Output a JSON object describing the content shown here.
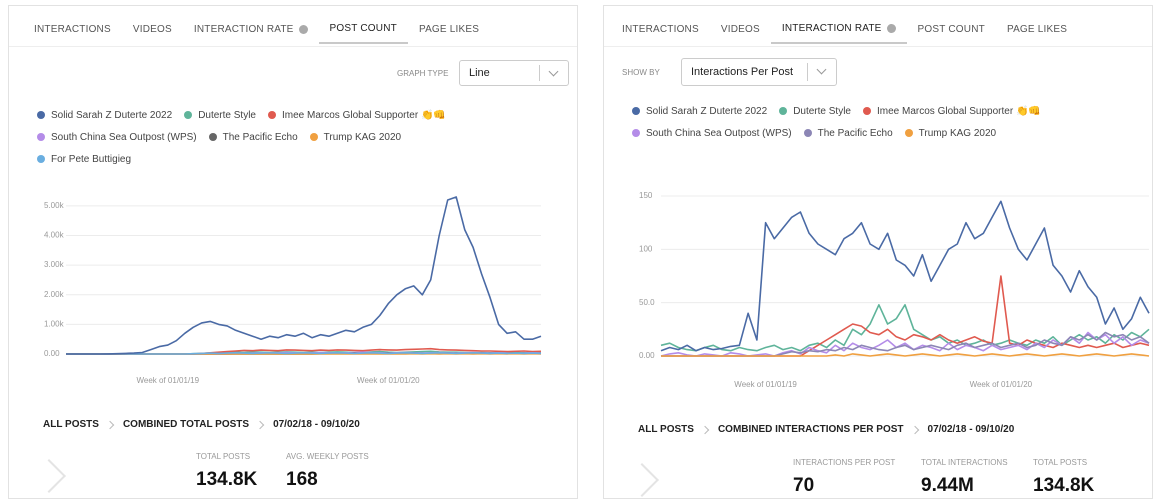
{
  "panels": [
    {
      "tabs": [
        "INTERACTIONS",
        "VIDEOS",
        "INTERACTION RATE",
        "POST COUNT",
        "PAGE LIKES"
      ],
      "control_label": "GRAPH TYPE",
      "control_value": "Line",
      "breadcrumb": [
        "ALL POSTS",
        "COMBINED TOTAL POSTS"
      ],
      "date_range": "07/02/18 - 09/10/20",
      "stats": [
        {
          "label": "TOTAL POSTS",
          "value": "134.8K"
        },
        {
          "label": "AVG. WEEKLY POSTS",
          "value": "168"
        }
      ]
    },
    {
      "tabs": [
        "INTERACTIONS",
        "VIDEOS",
        "INTERACTION RATE",
        "POST COUNT",
        "PAGE LIKES"
      ],
      "control_label": "SHOW BY",
      "control_value": "Interactions Per Post",
      "breadcrumb": [
        "ALL POSTS",
        "COMBINED INTERACTIONS PER POST"
      ],
      "date_range": "07/02/18 - 09/10/20",
      "stats": [
        {
          "label": "INTERACTIONS PER POST",
          "value": "70"
        },
        {
          "label": "TOTAL INTERACTIONS",
          "value": "9.44M"
        },
        {
          "label": "TOTAL POSTS",
          "value": "134.8K"
        }
      ]
    }
  ],
  "chart_data": [
    {
      "type": "line",
      "grid": true,
      "categories": [
        null,
        null,
        null,
        null,
        null,
        null,
        null,
        null,
        null,
        null,
        null,
        null,
        "Week of 01/01/19",
        null,
        null,
        null,
        null,
        null,
        null,
        null,
        null,
        null,
        null,
        null,
        null,
        null,
        null,
        null,
        null,
        null,
        null,
        null,
        null,
        null,
        null,
        null,
        null,
        null,
        "Week of 01/01/20",
        null,
        null,
        null,
        null,
        null,
        null,
        null,
        null,
        null,
        null,
        null,
        null,
        null,
        null,
        null,
        null,
        null,
        null
      ],
      "ylim": [
        0,
        5300
      ],
      "yticks": [
        {
          "value": 0,
          "label": "0.00"
        },
        {
          "value": 1000,
          "label": "1.00k"
        },
        {
          "value": 2000,
          "label": "2.00k"
        },
        {
          "value": 3000,
          "label": "3.00k"
        },
        {
          "value": 4000,
          "label": "4.00k"
        },
        {
          "value": 5000,
          "label": "5.00k"
        }
      ],
      "series": [
        {
          "name": "Solid Sarah Z Duterte 2022",
          "color": "#4a6aa5",
          "values": [
            0,
            0,
            0,
            0,
            0,
            5,
            10,
            20,
            30,
            50,
            150,
            250,
            300,
            450,
            700,
            900,
            1050,
            1100,
            1000,
            950,
            800,
            700,
            600,
            500,
            600,
            550,
            650,
            600,
            700,
            550,
            650,
            600,
            700,
            800,
            750,
            900,
            1000,
            1300,
            1700,
            2000,
            2200,
            2300,
            2000,
            2500,
            4000,
            5200,
            5300,
            4200,
            3600,
            2700,
            1900,
            1000,
            700,
            750,
            500,
            500,
            600
          ]
        },
        {
          "name": "Duterte Style",
          "color": "#5fb49a",
          "values": [
            0,
            0,
            0,
            0,
            0,
            0,
            0,
            0,
            0,
            0,
            0,
            0,
            0,
            0,
            0,
            10,
            20,
            30,
            40,
            50,
            60,
            50,
            70,
            60,
            50,
            60,
            70,
            60,
            50,
            60,
            50,
            60,
            70,
            60,
            50,
            60,
            70,
            80,
            60,
            50,
            60,
            70,
            80,
            90,
            70,
            60,
            60,
            50,
            40,
            50,
            40,
            50,
            60,
            50,
            40,
            50,
            50
          ]
        },
        {
          "name": "Imee Marcos Global Supporter 👏👊",
          "color": "#e05a4f",
          "values": [
            0,
            0,
            0,
            0,
            0,
            0,
            0,
            0,
            0,
            0,
            0,
            0,
            0,
            0,
            0,
            0,
            20,
            40,
            60,
            80,
            100,
            120,
            110,
            130,
            120,
            110,
            140,
            130,
            120,
            110,
            130,
            120,
            140,
            130,
            120,
            110,
            130,
            150,
            140,
            130,
            150,
            160,
            170,
            180,
            150,
            140,
            130,
            120,
            110,
            100,
            100,
            90,
            80,
            90,
            100,
            80,
            90
          ]
        },
        {
          "name": "South China Sea Outpost (WPS)",
          "color": "#b48ce8",
          "values": [
            0,
            0,
            0,
            0,
            0,
            0,
            0,
            0,
            0,
            0,
            0,
            0,
            0,
            0,
            0,
            0,
            0,
            0,
            0,
            0,
            10,
            20,
            30,
            40,
            30,
            40,
            50,
            40,
            30,
            40,
            50,
            40,
            30,
            40,
            50,
            60,
            50,
            40,
            30,
            40,
            50,
            40,
            30,
            40,
            50,
            40,
            30,
            40,
            50,
            40,
            30,
            40,
            30,
            20,
            30,
            40,
            30
          ]
        },
        {
          "name": "The Pacific Echo",
          "color": "#666666",
          "values": [
            0,
            0,
            0,
            0,
            0,
            0,
            0,
            0,
            0,
            0,
            0,
            0,
            0,
            0,
            0,
            0,
            0,
            0,
            0,
            0,
            0,
            0,
            0,
            0,
            0,
            0,
            0,
            0,
            0,
            0,
            10,
            20,
            10,
            20,
            30,
            20,
            10,
            20,
            30,
            20,
            20,
            30,
            20,
            10,
            20,
            30,
            20,
            10,
            20,
            30,
            20,
            10,
            20,
            10,
            20,
            10,
            20
          ]
        },
        {
          "name": "Trump KAG 2020",
          "color": "#f0a040",
          "values": [
            0,
            0,
            0,
            0,
            0,
            0,
            0,
            0,
            0,
            0,
            0,
            0,
            0,
            0,
            0,
            0,
            0,
            0,
            0,
            0,
            0,
            0,
            0,
            0,
            0,
            0,
            0,
            0,
            0,
            0,
            0,
            0,
            0,
            0,
            0,
            0,
            0,
            0,
            0,
            0,
            5,
            10,
            5,
            10,
            5,
            10,
            5,
            10,
            5,
            10,
            5,
            10,
            5,
            10,
            5,
            10,
            5
          ]
        },
        {
          "name": "For Pete Buttigieg",
          "color": "#6aaee0",
          "values": [
            0,
            0,
            0,
            0,
            0,
            0,
            0,
            0,
            0,
            0,
            0,
            0,
            0,
            0,
            0,
            10,
            20,
            30,
            20,
            30,
            40,
            30,
            20,
            30,
            40,
            30,
            20,
            30,
            40,
            30,
            20,
            30,
            40,
            30,
            20,
            30,
            40,
            30,
            20,
            30,
            40,
            30,
            20,
            30,
            40,
            30,
            20,
            30,
            40,
            30,
            20,
            30,
            20,
            30,
            20,
            30,
            20
          ]
        }
      ]
    },
    {
      "type": "line",
      "grid": true,
      "categories": [
        null,
        null,
        null,
        null,
        null,
        null,
        null,
        null,
        null,
        null,
        null,
        null,
        "Week of 01/01/19",
        null,
        null,
        null,
        null,
        null,
        null,
        null,
        null,
        null,
        null,
        null,
        null,
        null,
        null,
        null,
        null,
        null,
        null,
        null,
        null,
        null,
        null,
        null,
        null,
        null,
        null,
        "Week of 01/01/20",
        null,
        null,
        null,
        null,
        null,
        null,
        null,
        null,
        null,
        null,
        null,
        null,
        null,
        null,
        null,
        null,
        null
      ],
      "ylim": [
        0,
        150
      ],
      "yticks": [
        {
          "value": 0,
          "label": "0.00"
        },
        {
          "value": 50,
          "label": "50.0"
        },
        100,
        150
      ],
      "series": [
        {
          "name": "Solid Sarah Z Duterte 2022",
          "color": "#4a6aa5",
          "values": [
            5,
            8,
            6,
            10,
            5,
            8,
            6,
            7,
            9,
            10,
            40,
            15,
            125,
            110,
            120,
            130,
            135,
            115,
            105,
            100,
            95,
            110,
            115,
            125,
            105,
            100,
            115,
            90,
            85,
            75,
            95,
            70,
            85,
            100,
            105,
            125,
            110,
            115,
            130,
            145,
            120,
            100,
            90,
            105,
            120,
            85,
            75,
            60,
            80,
            65,
            55,
            30,
            45,
            25,
            35,
            55,
            40
          ]
        },
        {
          "name": "Duterte Style",
          "color": "#5fb49a",
          "values": [
            10,
            12,
            8,
            6,
            5,
            8,
            10,
            6,
            5,
            8,
            6,
            5,
            8,
            10,
            6,
            8,
            5,
            10,
            12,
            8,
            15,
            10,
            25,
            20,
            30,
            48,
            30,
            35,
            48,
            25,
            20,
            15,
            18,
            12,
            15,
            10,
            12,
            15,
            10,
            12,
            15,
            12,
            10,
            15,
            12,
            18,
            10,
            15,
            20,
            15,
            18,
            12,
            20,
            15,
            22,
            18,
            25
          ]
        },
        {
          "name": "Imee Marcos Global Supporter 👏👊",
          "color": "#e05a4f",
          "values": [
            0,
            0,
            0,
            0,
            0,
            0,
            0,
            0,
            0,
            0,
            0,
            0,
            0,
            0,
            0,
            0,
            0,
            5,
            10,
            15,
            20,
            25,
            30,
            28,
            22,
            20,
            25,
            18,
            15,
            20,
            18,
            15,
            20,
            15,
            12,
            15,
            18,
            14,
            12,
            75,
            12,
            10,
            15,
            12,
            10,
            8,
            12,
            10,
            8,
            10,
            8,
            10,
            12,
            8,
            10,
            12,
            10
          ]
        },
        {
          "name": "South China Sea Outpost (WPS)",
          "color": "#b48ce8",
          "values": [
            0,
            2,
            3,
            1,
            0,
            2,
            1,
            0,
            3,
            2,
            0,
            1,
            2,
            0,
            3,
            5,
            2,
            8,
            5,
            3,
            10,
            5,
            12,
            8,
            6,
            10,
            15,
            8,
            12,
            6,
            10,
            8,
            5,
            12,
            6,
            10,
            8,
            5,
            10,
            6,
            8,
            10,
            6,
            12,
            8,
            15,
            10,
            18,
            12,
            22,
            15,
            20,
            12,
            18,
            10,
            15,
            12
          ]
        },
        {
          "name": "The Pacific Echo",
          "color": "#8c86b5",
          "values": [
            0,
            0,
            0,
            0,
            0,
            0,
            0,
            0,
            0,
            0,
            0,
            0,
            0,
            0,
            2,
            4,
            3,
            5,
            4,
            6,
            5,
            8,
            6,
            10,
            8,
            6,
            5,
            8,
            10,
            6,
            8,
            10,
            8,
            6,
            10,
            12,
            8,
            10,
            12,
            8,
            10,
            12,
            8,
            10,
            15,
            12,
            10,
            18,
            15,
            20,
            15,
            22,
            18,
            20,
            15,
            18,
            12
          ]
        },
        {
          "name": "Trump KAG 2020",
          "color": "#f0a040",
          "values": [
            0,
            0,
            0,
            0,
            0,
            0,
            0,
            0,
            0,
            0,
            0,
            0,
            0,
            0,
            0,
            0,
            0,
            0,
            0,
            0,
            1,
            0,
            2,
            1,
            0,
            1,
            2,
            1,
            0,
            1,
            2,
            1,
            0,
            1,
            2,
            1,
            0,
            1,
            2,
            1,
            0,
            1,
            2,
            1,
            0,
            1,
            2,
            1,
            0,
            1,
            2,
            1,
            0,
            1,
            2,
            1,
            0
          ]
        }
      ]
    }
  ]
}
